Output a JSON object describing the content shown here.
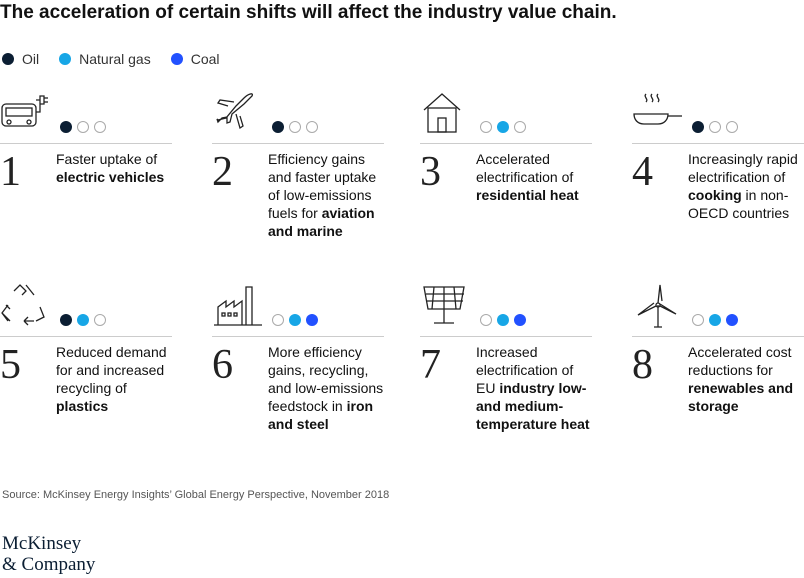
{
  "title": "The acceleration of certain shifts will affect the industry value chain.",
  "legend": [
    {
      "name": "Oil",
      "color": "#0b1e33"
    },
    {
      "name": "Natural gas",
      "color": "#17a6e6"
    },
    {
      "name": "Coal",
      "color": "#2251ff"
    }
  ],
  "cards": [
    {
      "number": "1",
      "fuels": [
        true,
        false,
        false
      ],
      "text": [
        {
          "text": "Faster uptake of ",
          "bold": false
        },
        {
          "text": "electric vehicles",
          "bold": true
        }
      ]
    },
    {
      "number": "2",
      "fuels": [
        true,
        false,
        false
      ],
      "text": [
        {
          "text": "Efficiency gains and faster uptake of low-emissions fuels for ",
          "bold": false
        },
        {
          "text": "aviation and marine",
          "bold": true
        }
      ]
    },
    {
      "number": "3",
      "fuels": [
        false,
        true,
        false
      ],
      "text": [
        {
          "text": "Accelerated electrification of ",
          "bold": false
        },
        {
          "text": "residential heat",
          "bold": true
        }
      ]
    },
    {
      "number": "4",
      "fuels": [
        true,
        false,
        false
      ],
      "text": [
        {
          "text": "Increasingly rapid electrification of ",
          "bold": false
        },
        {
          "text": "cooking",
          "bold": true
        },
        {
          "text": " in non-OECD countries",
          "bold": false
        }
      ]
    },
    {
      "number": "5",
      "fuels": [
        true,
        true,
        false
      ],
      "text": [
        {
          "text": "Reduced demand for and increased recycling of ",
          "bold": false
        },
        {
          "text": "plastics",
          "bold": true
        }
      ]
    },
    {
      "number": "6",
      "fuels": [
        false,
        true,
        true
      ],
      "text": [
        {
          "text": "More efficiency gains, recycling, and low-emissions feedstock in ",
          "bold": false
        },
        {
          "text": "iron and steel",
          "bold": true
        }
      ]
    },
    {
      "number": "7",
      "fuels": [
        false,
        true,
        true
      ],
      "text": [
        {
          "text": "Increased electrification of EU ",
          "bold": false
        },
        {
          "text": "industry low- and medium-temperature heat",
          "bold": true
        }
      ]
    },
    {
      "number": "8",
      "fuels": [
        false,
        true,
        true
      ],
      "text": [
        {
          "text": "Accelerated cost reductions for ",
          "bold": false
        },
        {
          "text": "renewables and storage",
          "bold": true
        }
      ]
    }
  ],
  "source": "Source: McKinsey Energy Insights’ Global Energy Perspective, November 2018",
  "logo": [
    "McKinsey",
    "& Company"
  ]
}
